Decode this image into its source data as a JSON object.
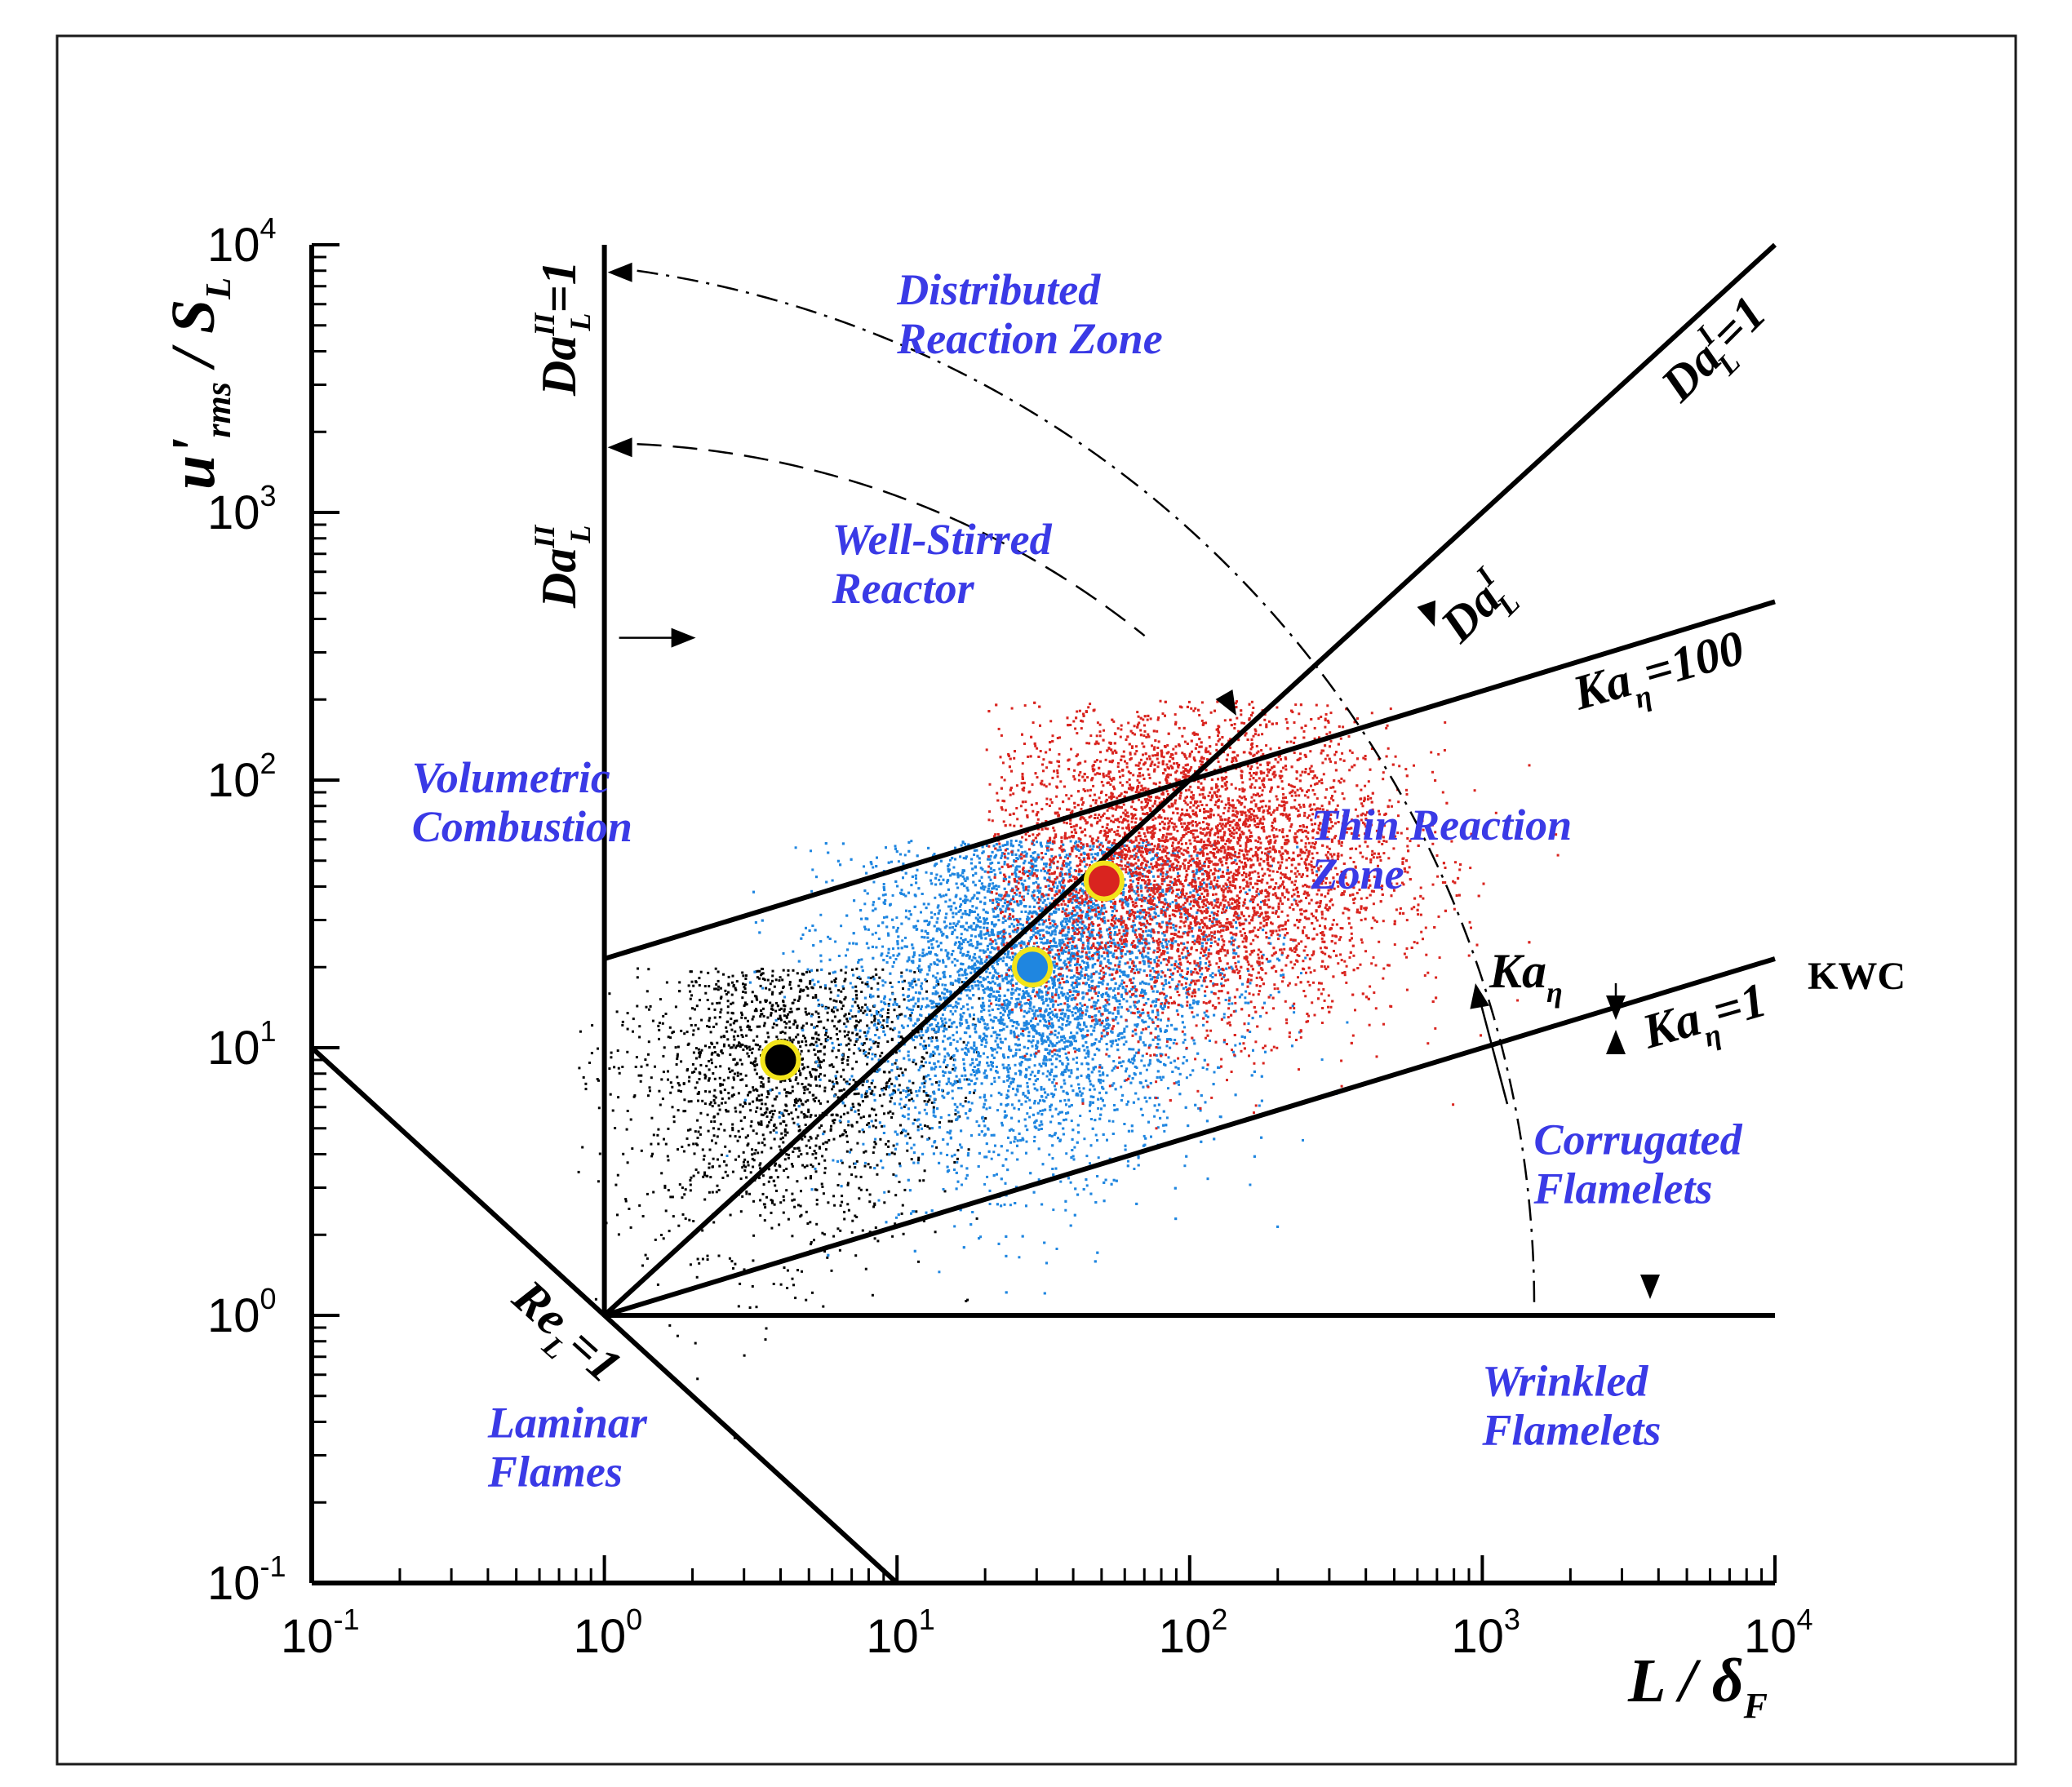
{
  "chart_data": {
    "type": "scatter",
    "title": "",
    "x_scale": "log",
    "y_scale": "log",
    "xlim": [
      0.1,
      10000
    ],
    "ylim": [
      0.1,
      10000
    ],
    "grid": false,
    "x_ticks": [
      {
        "base": "10",
        "exp": "-1"
      },
      {
        "base": "10",
        "exp": "0"
      },
      {
        "base": "10",
        "exp": "1"
      },
      {
        "base": "10",
        "exp": "2"
      },
      {
        "base": "10",
        "exp": "3"
      },
      {
        "base": "10",
        "exp": "4"
      }
    ],
    "y_ticks": [
      {
        "base": "10",
        "exp": "-1"
      },
      {
        "base": "10",
        "exp": "0"
      },
      {
        "base": "10",
        "exp": "1"
      },
      {
        "base": "10",
        "exp": "2"
      },
      {
        "base": "10",
        "exp": "3"
      },
      {
        "base": "10",
        "exp": "4"
      }
    ],
    "xlabel": {
      "main": "L / δ",
      "sub": "F"
    },
    "ylabel": {
      "main": "u'",
      "sub": "rms",
      "tail": " / S",
      "sub2": "L"
    },
    "regime_lines": [
      {
        "name": "Re_L=1",
        "points": [
          [
            0.1,
            10
          ],
          [
            10,
            0.1
          ]
        ]
      },
      {
        "name": "Da^II_L=1",
        "points": [
          [
            1,
            1
          ],
          [
            1,
            10000
          ]
        ]
      },
      {
        "name": "Da^I_L=1",
        "points": [
          [
            1,
            1
          ],
          [
            10000,
            10000
          ]
        ]
      },
      {
        "name": "Ka_eta=100",
        "points": [
          [
            1,
            21.5
          ],
          [
            10000,
            464
          ]
        ]
      },
      {
        "name": "Ka_eta=1",
        "points": [
          [
            1,
            1
          ],
          [
            10000,
            21.5
          ]
        ]
      },
      {
        "name": "u'/S_L=1",
        "points": [
          [
            1,
            1
          ],
          [
            10000,
            1
          ]
        ]
      }
    ],
    "line_labels": [
      {
        "base": "Re",
        "sub": "L",
        "tail": "=1"
      },
      {
        "base": "Da",
        "sup": "II",
        "sub": "L",
        "tail": "=1"
      },
      {
        "base": "Da",
        "sup": "I",
        "sub": "L",
        "tail": "=1"
      },
      {
        "base": "Ka",
        "sub": "η",
        "tail": "=100"
      },
      {
        "base": "Ka",
        "sub": "η",
        "tail": "=1"
      },
      {
        "base": "KWC"
      }
    ],
    "arrow_labels": [
      {
        "base": "Da",
        "sup": "II",
        "sub": "L"
      },
      {
        "base": "Da",
        "sup": "I",
        "sub": "L"
      },
      {
        "base": "Ka",
        "sub": "η"
      }
    ],
    "regions": [
      {
        "lines": [
          "Distributed",
          "Reaction Zone"
        ],
        "x": 10,
        "y": 6000
      },
      {
        "lines": [
          "Well-Stirred",
          "Reactor"
        ],
        "x": 6,
        "y": 700
      },
      {
        "lines": [
          "Volumetric",
          "Combustion"
        ],
        "x": 0.22,
        "y": 90
      },
      {
        "lines": [
          "Thin Reaction",
          "Zone"
        ],
        "x": 260,
        "y": 60
      },
      {
        "lines": [
          "Corrugated",
          "Flamelets"
        ],
        "x": 1500,
        "y": 4
      },
      {
        "lines": [
          "Laminar",
          "Flames"
        ],
        "x": 0.4,
        "y": 0.35
      },
      {
        "lines": [
          "Wrinkled",
          "Flamelets"
        ],
        "x": 1000,
        "y": 0.5
      }
    ],
    "series": [
      {
        "color": "#000000",
        "x_range": [
          0.8,
          20
        ],
        "y_range": [
          0.1,
          20
        ],
        "center": [
          4,
          9
        ]
      },
      {
        "color": "#1f86e0",
        "x_range": [
          1.5,
          400
        ],
        "y_range": [
          0.1,
          60
        ],
        "center": [
          30,
          20
        ]
      },
      {
        "color": "#d9241f",
        "x_range": [
          20,
          2000
        ],
        "y_range": [
          1,
          200
        ],
        "center": [
          100,
          50
        ]
      }
    ],
    "highlight_points": [
      {
        "color": "#000000",
        "x": 4,
        "y": 9
      },
      {
        "color": "#1f86e0",
        "x": 29,
        "y": 20
      },
      {
        "color": "#d9241f",
        "x": 51,
        "y": 42
      }
    ],
    "colors": {
      "region_text": "#3a3ae6",
      "highlight_ring": "#f2e41a",
      "lines": "#000000"
    }
  }
}
